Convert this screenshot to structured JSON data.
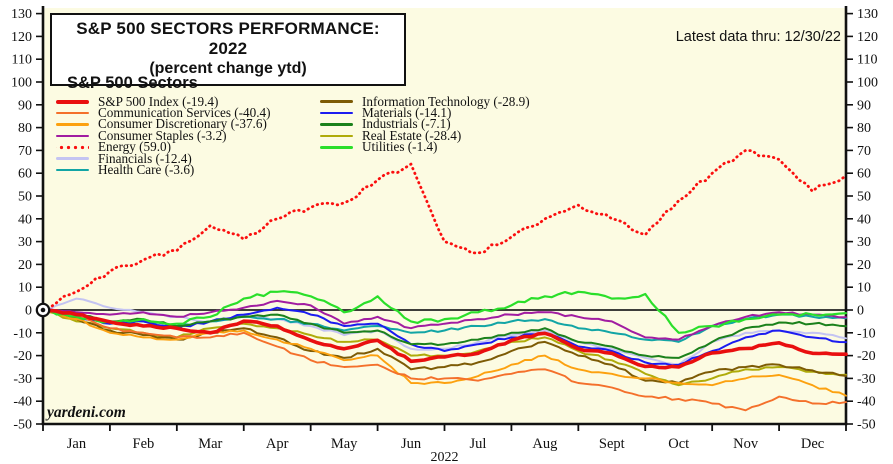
{
  "header": {
    "title_line1": "S&P 500 SECTORS PERFORMANCE: 2022",
    "title_line2": "(percent change ytd)",
    "latest_data": "Latest data thru: 12/30/22"
  },
  "watermark": "yardeni.com",
  "legend": {
    "header": "S&P 500 Sectors",
    "items": [
      {
        "id": "sp500",
        "label": "S&P 500 Index (-19.4)",
        "col": 0
      },
      {
        "id": "comm",
        "label": "Communication Services (-40.4)",
        "col": 0
      },
      {
        "id": "disc",
        "label": "Consumer Discretionary (-37.6)",
        "col": 0
      },
      {
        "id": "staples",
        "label": "Consumer Staples (-3.2)",
        "col": 0
      },
      {
        "id": "energy",
        "label": "Energy (59.0)",
        "col": 0
      },
      {
        "id": "fin",
        "label": "Financials (-12.4)",
        "col": 0
      },
      {
        "id": "health",
        "label": "Health Care (-3.6)",
        "col": 0
      },
      {
        "id": "it",
        "label": "Information Technology (-28.9)",
        "col": 1
      },
      {
        "id": "mat",
        "label": "Materials (-14.1)",
        "col": 1
      },
      {
        "id": "ind",
        "label": "Industrials (-7.1)",
        "col": 1
      },
      {
        "id": "re",
        "label": "Real Estate (-28.4)",
        "col": 1
      },
      {
        "id": "util",
        "label": "Utilities (-1.4)",
        "col": 1
      }
    ]
  },
  "chart_data": {
    "type": "line",
    "title": "S&P 500 SECTORS PERFORMANCE: 2022 (percent change ytd)",
    "xlabel": "2022",
    "ylabel": "percent change ytd",
    "ylim": [
      -50,
      130
    ],
    "y_ticks": [
      130,
      120,
      110,
      100,
      90,
      80,
      70,
      60,
      50,
      40,
      30,
      20,
      10,
      0,
      -10,
      -20,
      -30,
      -40,
      -50
    ],
    "x_ticklabels": [
      "Jan",
      "Feb",
      "Mar",
      "Apr",
      "May",
      "Jun",
      "Jul",
      "Aug",
      "Sept",
      "Oct",
      "Nov",
      "Dec"
    ],
    "year_label": "2022",
    "grid": false,
    "legend_position": "upper-left",
    "plot_bg": "#FCFBE2",
    "zero_line_color": "#222222",
    "t": [
      0,
      0.5,
      1,
      1.5,
      2,
      2.5,
      3,
      3.5,
      4,
      4.5,
      5,
      5.5,
      6,
      6.5,
      7,
      7.5,
      8,
      8.5,
      9,
      9.5,
      10,
      10.5,
      11,
      11.5,
      12
    ],
    "series": [
      {
        "id": "sp500",
        "name": "S&P 500 Index",
        "final": -19.4,
        "color": "#E90F0F",
        "width": 3.6,
        "dotted": false,
        "noise": 0.45,
        "values": [
          0,
          -2,
          -5.2,
          -7,
          -8,
          -10,
          -4.9,
          -7,
          -13.3,
          -17,
          -13.3,
          -22.5,
          -20.6,
          -19,
          -13.3,
          -10.2,
          -17,
          -19,
          -24.8,
          -25,
          -18.8,
          -16.9,
          -14.4,
          -19,
          -19.4
        ]
      },
      {
        "id": "comm",
        "name": "Communication Services",
        "final": -40.4,
        "color": "#F4702B",
        "width": 1.9,
        "dotted": false,
        "noise": 0.6,
        "values": [
          0,
          -3,
          -8,
          -10,
          -12,
          -12,
          -10,
          -16,
          -22,
          -25,
          -24,
          -30,
          -30,
          -31,
          -28,
          -26,
          -32,
          -34,
          -38,
          -39,
          -41,
          -44,
          -38,
          -41,
          -40.4
        ]
      },
      {
        "id": "disc",
        "name": "Consumer Discretionary",
        "final": -37.6,
        "color": "#FCA10F",
        "width": 1.9,
        "dotted": false,
        "noise": 0.6,
        "values": [
          0,
          -4,
          -10,
          -12,
          -13,
          -10,
          -9,
          -13,
          -17,
          -22,
          -20,
          -32,
          -32,
          -29,
          -24,
          -20,
          -26,
          -28,
          -30,
          -32,
          -33,
          -30,
          -28.5,
          -33,
          -37.6
        ]
      },
      {
        "id": "staples",
        "name": "Consumer Staples",
        "final": -3.2,
        "color": "#A11CA1",
        "width": 2.0,
        "dotted": false,
        "noise": 0.5,
        "values": [
          0,
          -1,
          -2,
          -1,
          -3,
          -1,
          1,
          4,
          2,
          -6,
          -3,
          -8,
          -6,
          -4,
          -2,
          -1,
          -3,
          -5,
          -12,
          -13,
          -7,
          -3,
          -1,
          -2,
          -3.2
        ]
      },
      {
        "id": "energy",
        "name": "Energy",
        "final": 59.0,
        "color": "#FA0F0F",
        "width": 2.8,
        "dotted": true,
        "noise": 1.1,
        "values": [
          0,
          8,
          17,
          22,
          26,
          37,
          31,
          40,
          45,
          47,
          57,
          64,
          30,
          25,
          32,
          40,
          46,
          40,
          33,
          48,
          60,
          70,
          66,
          52,
          59
        ]
      },
      {
        "id": "fin",
        "name": "Financials",
        "final": -12.4,
        "color": "#C4C4F2",
        "width": 2.0,
        "dotted": false,
        "noise": 0.55,
        "values": [
          0,
          5,
          1,
          -1,
          -3,
          -5,
          -2,
          -4,
          -7,
          -11,
          -9,
          -17,
          -17,
          -14,
          -11,
          -9,
          -14,
          -17,
          -21,
          -24,
          -14,
          -10,
          -9,
          -10,
          -12.4
        ]
      },
      {
        "id": "health",
        "name": "Health Care",
        "final": -3.6,
        "color": "#12A5A5",
        "width": 2.0,
        "dotted": false,
        "noise": 0.55,
        "values": [
          0,
          -3,
          -6,
          -5,
          -7,
          -5,
          -3,
          -4,
          -6,
          -9,
          -7,
          -10,
          -9,
          -7,
          -5,
          -4,
          -8,
          -10,
          -13,
          -14,
          -7,
          -4,
          -2,
          -3,
          -3.6
        ]
      },
      {
        "id": "it",
        "name": "Information Technology",
        "final": -28.9,
        "color": "#7D5B05",
        "width": 2.0,
        "dotted": false,
        "noise": 0.6,
        "values": [
          0,
          -4,
          -9,
          -11,
          -13,
          -10,
          -8,
          -12,
          -18,
          -21,
          -17,
          -26,
          -25,
          -23,
          -18,
          -14,
          -20,
          -24,
          -31,
          -32,
          -27,
          -25,
          -24,
          -26.5,
          -28.9
        ]
      },
      {
        "id": "mat",
        "name": "Materials",
        "final": -14.1,
        "color": "#1C1CF0",
        "width": 2.0,
        "dotted": false,
        "noise": 0.55,
        "values": [
          0,
          -3,
          -6,
          -5,
          -8,
          -5,
          -2,
          1,
          -2,
          -7,
          -6,
          -15,
          -18,
          -15,
          -12,
          -10,
          -16,
          -18,
          -23,
          -24,
          -18,
          -12,
          -9,
          -12,
          -14.1
        ]
      },
      {
        "id": "ind",
        "name": "Industrials",
        "final": -7.1,
        "color": "#1B811B",
        "width": 2.0,
        "dotted": false,
        "noise": 0.55,
        "values": [
          0,
          -2,
          -5,
          -4,
          -7,
          -5,
          -3,
          -2,
          -6,
          -10,
          -9,
          -15,
          -15,
          -13,
          -10,
          -8,
          -14,
          -16,
          -20,
          -21,
          -14,
          -8,
          -5.5,
          -6,
          -7.1
        ]
      },
      {
        "id": "re",
        "name": "Real Estate",
        "final": -28.4,
        "color": "#AFAB0A",
        "width": 2.0,
        "dotted": false,
        "noise": 0.55,
        "values": [
          0,
          -5,
          -8,
          -10,
          -12,
          -8,
          -6,
          -8,
          -11,
          -14,
          -13,
          -20,
          -20,
          -18,
          -14,
          -12,
          -18,
          -22,
          -28,
          -33,
          -30,
          -26,
          -25,
          -27,
          -28.4
        ]
      },
      {
        "id": "util",
        "name": "Utilities",
        "final": -1.4,
        "color": "#2ADF2A",
        "width": 2.2,
        "dotted": false,
        "noise": 0.9,
        "values": [
          0,
          -3,
          -5,
          -4,
          -6,
          -3,
          5,
          8,
          6,
          -1,
          6,
          -5,
          -4,
          -1,
          2,
          6,
          8,
          5,
          7,
          -10,
          -7,
          -4,
          -2,
          -2,
          -1.4
        ]
      }
    ]
  }
}
